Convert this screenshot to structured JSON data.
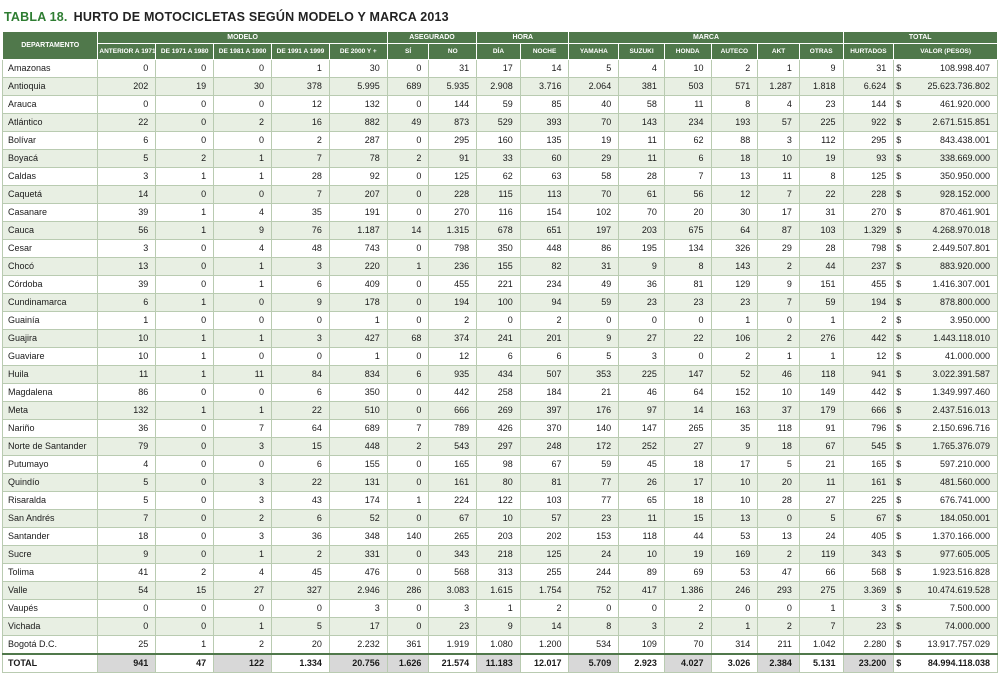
{
  "title": {
    "prefix": "TABLA 18.",
    "text": "HURTO DE MOTOCICLETAS SEGÚN MODELO Y MARCA 2013"
  },
  "colors": {
    "header_bg": "#50784b",
    "row_stripe": "#e8efe3",
    "total_gray": "#d8d8d8",
    "title_green": "#2e7d32",
    "cell_border": "#b9cbb1"
  },
  "table": {
    "department_header": "DEPARTAMENTO",
    "groups": [
      {
        "label": "MODELO"
      },
      {
        "label": "ASEGURADO"
      },
      {
        "label": "HORA"
      },
      {
        "label": "MARCA"
      },
      {
        "label": "TOTAL"
      }
    ],
    "group_sizes": [
      5,
      2,
      2,
      6,
      2
    ],
    "sub_headers": [
      "ANTERIOR A 1971",
      "DE 1971 A 1980",
      "DE 1981 A 1990",
      "DE 1991 A 1999",
      "DE 2000 Y +",
      "SÍ",
      "NO",
      "DÍA",
      "NOCHE",
      "YAMAHA",
      "SUZUKI",
      "HONDA",
      "AUTECO",
      "AKT",
      "OTRAS",
      "HURTADOS",
      "VALOR (PESOS)"
    ],
    "rows": [
      {
        "departamento": "Amazonas",
        "values": [
          "0",
          "0",
          "0",
          "1",
          "30",
          "0",
          "31",
          "17",
          "14",
          "5",
          "4",
          "10",
          "2",
          "1",
          "9",
          "31",
          "$ 108.998.407"
        ]
      },
      {
        "departamento": "Antioquia",
        "values": [
          "202",
          "19",
          "30",
          "378",
          "5.995",
          "689",
          "5.935",
          "2.908",
          "3.716",
          "2.064",
          "381",
          "503",
          "571",
          "1.287",
          "1.818",
          "6.624",
          "$ 25.623.736.802"
        ]
      },
      {
        "departamento": "Arauca",
        "values": [
          "0",
          "0",
          "0",
          "12",
          "132",
          "0",
          "144",
          "59",
          "85",
          "40",
          "58",
          "11",
          "8",
          "4",
          "23",
          "144",
          "$ 461.920.000"
        ]
      },
      {
        "departamento": "Atlántico",
        "values": [
          "22",
          "0",
          "2",
          "16",
          "882",
          "49",
          "873",
          "529",
          "393",
          "70",
          "143",
          "234",
          "193",
          "57",
          "225",
          "922",
          "$ 2.671.515.851"
        ]
      },
      {
        "departamento": "Bolívar",
        "values": [
          "6",
          "0",
          "0",
          "2",
          "287",
          "0",
          "295",
          "160",
          "135",
          "19",
          "11",
          "62",
          "88",
          "3",
          "112",
          "295",
          "$ 843.438.001"
        ]
      },
      {
        "departamento": "Boyacá",
        "values": [
          "5",
          "2",
          "1",
          "7",
          "78",
          "2",
          "91",
          "33",
          "60",
          "29",
          "11",
          "6",
          "18",
          "10",
          "19",
          "93",
          "$ 338.669.000"
        ]
      },
      {
        "departamento": "Caldas",
        "values": [
          "3",
          "1",
          "1",
          "28",
          "92",
          "0",
          "125",
          "62",
          "63",
          "58",
          "28",
          "7",
          "13",
          "11",
          "8",
          "125",
          "$ 350.950.000"
        ]
      },
      {
        "departamento": "Caquetá",
        "values": [
          "14",
          "0",
          "0",
          "7",
          "207",
          "0",
          "228",
          "115",
          "113",
          "70",
          "61",
          "56",
          "12",
          "7",
          "22",
          "228",
          "$ 928.152.000"
        ]
      },
      {
        "departamento": "Casanare",
        "values": [
          "39",
          "1",
          "4",
          "35",
          "191",
          "0",
          "270",
          "116",
          "154",
          "102",
          "70",
          "20",
          "30",
          "17",
          "31",
          "270",
          "$ 870.461.901"
        ]
      },
      {
        "departamento": "Cauca",
        "values": [
          "56",
          "1",
          "9",
          "76",
          "1.187",
          "14",
          "1.315",
          "678",
          "651",
          "197",
          "203",
          "675",
          "64",
          "87",
          "103",
          "1.329",
          "$ 4.268.970.018"
        ]
      },
      {
        "departamento": "Cesar",
        "values": [
          "3",
          "0",
          "4",
          "48",
          "743",
          "0",
          "798",
          "350",
          "448",
          "86",
          "195",
          "134",
          "326",
          "29",
          "28",
          "798",
          "$ 2.449.507.801"
        ]
      },
      {
        "departamento": "Chocó",
        "values": [
          "13",
          "0",
          "1",
          "3",
          "220",
          "1",
          "236",
          "155",
          "82",
          "31",
          "9",
          "8",
          "143",
          "2",
          "44",
          "237",
          "$ 883.920.000"
        ]
      },
      {
        "departamento": "Córdoba",
        "values": [
          "39",
          "0",
          "1",
          "6",
          "409",
          "0",
          "455",
          "221",
          "234",
          "49",
          "36",
          "81",
          "129",
          "9",
          "151",
          "455",
          "$ 1.416.307.001"
        ]
      },
      {
        "departamento": "Cundinamarca",
        "values": [
          "6",
          "1",
          "0",
          "9",
          "178",
          "0",
          "194",
          "100",
          "94",
          "59",
          "23",
          "23",
          "23",
          "7",
          "59",
          "194",
          "$ 878.800.000"
        ]
      },
      {
        "departamento": "Guainía",
        "values": [
          "1",
          "0",
          "0",
          "0",
          "1",
          "0",
          "2",
          "0",
          "2",
          "0",
          "0",
          "0",
          "1",
          "0",
          "1",
          "2",
          "$ 3.950.000"
        ]
      },
      {
        "departamento": "Guajira",
        "values": [
          "10",
          "1",
          "1",
          "3",
          "427",
          "68",
          "374",
          "241",
          "201",
          "9",
          "27",
          "22",
          "106",
          "2",
          "276",
          "442",
          "$ 1.443.118.010"
        ]
      },
      {
        "departamento": "Guaviare",
        "values": [
          "10",
          "1",
          "0",
          "0",
          "1",
          "0",
          "12",
          "6",
          "6",
          "5",
          "3",
          "0",
          "2",
          "1",
          "1",
          "12",
          "$ 41.000.000"
        ]
      },
      {
        "departamento": "Huila",
        "values": [
          "11",
          "1",
          "11",
          "84",
          "834",
          "6",
          "935",
          "434",
          "507",
          "353",
          "225",
          "147",
          "52",
          "46",
          "118",
          "941",
          "$ 3.022.391.587"
        ]
      },
      {
        "departamento": "Magdalena",
        "values": [
          "86",
          "0",
          "0",
          "6",
          "350",
          "0",
          "442",
          "258",
          "184",
          "21",
          "46",
          "64",
          "152",
          "10",
          "149",
          "442",
          "$ 1.349.997.460"
        ]
      },
      {
        "departamento": "Meta",
        "values": [
          "132",
          "1",
          "1",
          "22",
          "510",
          "0",
          "666",
          "269",
          "397",
          "176",
          "97",
          "14",
          "163",
          "37",
          "179",
          "666",
          "$ 2.437.516.013"
        ]
      },
      {
        "departamento": "Nariño",
        "values": [
          "36",
          "0",
          "7",
          "64",
          "689",
          "7",
          "789",
          "426",
          "370",
          "140",
          "147",
          "265",
          "35",
          "118",
          "91",
          "796",
          "$ 2.150.696.716"
        ]
      },
      {
        "departamento": "Norte de Santander",
        "values": [
          "79",
          "0",
          "3",
          "15",
          "448",
          "2",
          "543",
          "297",
          "248",
          "172",
          "252",
          "27",
          "9",
          "18",
          "67",
          "545",
          "$ 1.765.376.079"
        ]
      },
      {
        "departamento": "Putumayo",
        "values": [
          "4",
          "0",
          "0",
          "6",
          "155",
          "0",
          "165",
          "98",
          "67",
          "59",
          "45",
          "18",
          "17",
          "5",
          "21",
          "165",
          "$ 597.210.000"
        ]
      },
      {
        "departamento": "Quindío",
        "values": [
          "5",
          "0",
          "3",
          "22",
          "131",
          "0",
          "161",
          "80",
          "81",
          "77",
          "26",
          "17",
          "10",
          "20",
          "11",
          "161",
          "$ 481.560.000"
        ]
      },
      {
        "departamento": "Risaralda",
        "values": [
          "5",
          "0",
          "3",
          "43",
          "174",
          "1",
          "224",
          "122",
          "103",
          "77",
          "65",
          "18",
          "10",
          "28",
          "27",
          "225",
          "$ 676.741.000"
        ]
      },
      {
        "departamento": "San Andrés",
        "values": [
          "7",
          "0",
          "2",
          "6",
          "52",
          "0",
          "67",
          "10",
          "57",
          "23",
          "11",
          "15",
          "13",
          "0",
          "5",
          "67",
          "$ 184.050.001"
        ]
      },
      {
        "departamento": "Santander",
        "values": [
          "18",
          "0",
          "3",
          "36",
          "348",
          "140",
          "265",
          "203",
          "202",
          "153",
          "118",
          "44",
          "53",
          "13",
          "24",
          "405",
          "$ 1.370.166.000"
        ]
      },
      {
        "departamento": "Sucre",
        "values": [
          "9",
          "0",
          "1",
          "2",
          "331",
          "0",
          "343",
          "218",
          "125",
          "24",
          "10",
          "19",
          "169",
          "2",
          "119",
          "343",
          "$ 977.605.005"
        ]
      },
      {
        "departamento": "Tolima",
        "values": [
          "41",
          "2",
          "4",
          "45",
          "476",
          "0",
          "568",
          "313",
          "255",
          "244",
          "89",
          "69",
          "53",
          "47",
          "66",
          "568",
          "$ 1.923.516.828"
        ]
      },
      {
        "departamento": "Valle",
        "values": [
          "54",
          "15",
          "27",
          "327",
          "2.946",
          "286",
          "3.083",
          "1.615",
          "1.754",
          "752",
          "417",
          "1.386",
          "246",
          "293",
          "275",
          "3.369",
          "$ 10.474.619.528"
        ]
      },
      {
        "departamento": "Vaupés",
        "values": [
          "0",
          "0",
          "0",
          "0",
          "3",
          "0",
          "3",
          "1",
          "2",
          "0",
          "0",
          "2",
          "0",
          "0",
          "1",
          "3",
          "$ 7.500.000"
        ]
      },
      {
        "departamento": "Vichada",
        "values": [
          "0",
          "0",
          "1",
          "5",
          "17",
          "0",
          "23",
          "9",
          "14",
          "8",
          "3",
          "2",
          "1",
          "2",
          "7",
          "23",
          "$ 74.000.000"
        ]
      },
      {
        "departamento": "Bogotá D.C.",
        "values": [
          "25",
          "1",
          "2",
          "20",
          "2.232",
          "361",
          "1.919",
          "1.080",
          "1.200",
          "534",
          "109",
          "70",
          "314",
          "211",
          "1.042",
          "2.280",
          "$ 13.917.757.029"
        ]
      }
    ],
    "total": {
      "label": "TOTAL",
      "values": [
        "941",
        "47",
        "122",
        "1.334",
        "20.756",
        "1.626",
        "21.574",
        "11.183",
        "12.017",
        "5.709",
        "2.923",
        "4.027",
        "3.026",
        "2.384",
        "5.131",
        "23.200",
        "$ 84.994.118.038"
      ]
    }
  }
}
